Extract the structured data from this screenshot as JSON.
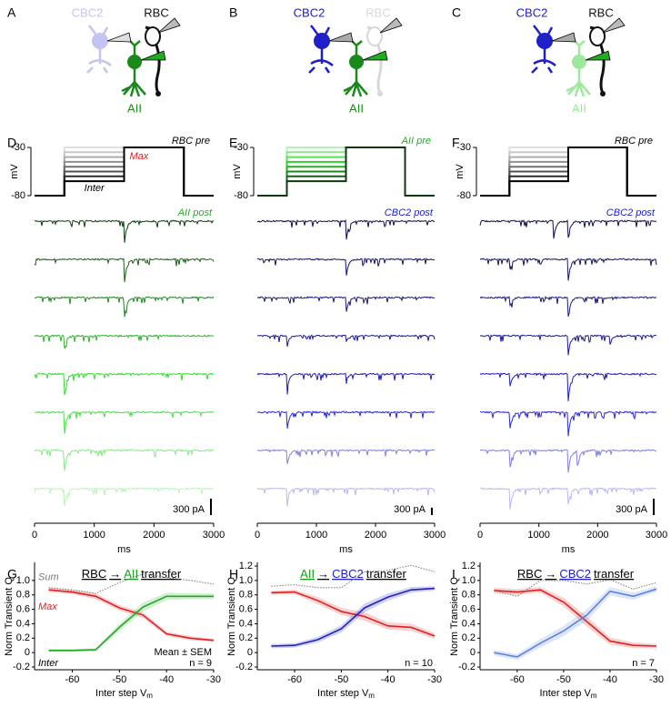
{
  "cartoons": [
    {
      "letter": "A",
      "labels": [
        {
          "text": "CBC2",
          "color": "#c4c4f2"
        },
        {
          "text": "RBC",
          "color": "#111111"
        },
        {
          "text": "AII",
          "color": "#1a8a1a"
        }
      ]
    },
    {
      "letter": "B",
      "labels": [
        {
          "text": "CBC2",
          "color": "#2020c8"
        },
        {
          "text": "RBC",
          "color": "#d8d8d8"
        },
        {
          "text": "AII",
          "color": "#1a8a1a"
        }
      ]
    },
    {
      "letter": "C",
      "labels": [
        {
          "text": "CBC2",
          "color": "#2020c8"
        },
        {
          "text": "RBC",
          "color": "#111111"
        },
        {
          "text": "AII",
          "color": "#9ee89e"
        }
      ]
    }
  ],
  "recordings": [
    {
      "letter": "D",
      "pre_label": "RBC pre",
      "pre_color": "#000000",
      "max_label": "Max",
      "inter_label": "Inter",
      "ylabel": "mV",
      "ylim": [
        -80,
        -30
      ],
      "yticks": [
        -30,
        -80
      ],
      "rest": -80,
      "max": -30,
      "step_times": [
        500,
        1500,
        2500
      ],
      "inter_levels": [
        -65,
        -60,
        -55,
        -50,
        -45,
        -40,
        -35,
        -30
      ],
      "level_colors": [
        "#000000",
        "#2a2a2a",
        "#505050",
        "#707070",
        "#909090",
        "#adadad",
        "#c8c8c8",
        "#e0e0e0"
      ],
      "post_label": "AII post",
      "post_color": "#22aa22",
      "traces": [
        {
          "color": "#0b3d0b",
          "transients": [
            [
              1500,
              450
            ]
          ]
        },
        {
          "color": "#1a5e1a",
          "transients": [
            [
              1500,
              500
            ]
          ]
        },
        {
          "color": "#1e8a1e",
          "transients": [
            [
              1500,
              450
            ]
          ]
        },
        {
          "color": "#2ab82a",
          "transients": [
            [
              500,
              200
            ]
          ]
        },
        {
          "color": "#30dd30",
          "transients": [
            [
              500,
              400
            ]
          ]
        },
        {
          "color": "#48e048",
          "transients": [
            [
              500,
              400
            ]
          ]
        },
        {
          "color": "#8ae88a",
          "transients": [
            [
              500,
              400
            ]
          ]
        },
        {
          "color": "#bdf2bd",
          "transients": [
            [
              500,
              350
            ]
          ]
        }
      ],
      "scale_bar": {
        "value": 300,
        "label": "300 pA"
      },
      "xlim": [
        0,
        3000
      ],
      "xticks": [
        0,
        1000,
        2000,
        3000
      ],
      "xlabel": "ms"
    },
    {
      "letter": "E",
      "pre_label": "AII pre",
      "pre_color": "#22aa22",
      "ylabel": "mV",
      "ylim": [
        -80,
        -30
      ],
      "yticks": [
        -30,
        -80
      ],
      "rest": -80,
      "max": -30,
      "step_times": [
        500,
        1500,
        2500
      ],
      "inter_levels": [
        -65,
        -60,
        -55,
        -50,
        -45,
        -40,
        -35,
        -30
      ],
      "level_colors": [
        "#0c3a0c",
        "#146014",
        "#1a8a1a",
        "#22b022",
        "#30d030",
        "#5ae05a",
        "#8ae88a",
        "#b8f0b8"
      ],
      "post_label": "CBC2 post",
      "post_color": "#2020c8",
      "traces": [
        {
          "color": "#101048",
          "transients": [
            [
              1500,
              900
            ]
          ]
        },
        {
          "color": "#141460",
          "transients": [
            [
              1500,
              800
            ]
          ]
        },
        {
          "color": "#18187a",
          "transients": [
            [
              1500,
              700
            ]
          ]
        },
        {
          "color": "#1a1a9a",
          "transients": [
            [
              500,
              400
            ],
            [
              1500,
              300
            ]
          ]
        },
        {
          "color": "#1c1cc0",
          "transients": [
            [
              500,
              700
            ],
            [
              1500,
              300
            ]
          ]
        },
        {
          "color": "#2a2ad8",
          "transients": [
            [
              500,
              800
            ]
          ]
        },
        {
          "color": "#8080e0",
          "transients": [
            [
              500,
              700
            ]
          ]
        },
        {
          "color": "#b8b8f0",
          "transients": [
            [
              500,
              600
            ]
          ]
        }
      ],
      "scale_bar": {
        "value": 300,
        "label": "300 pA"
      },
      "xlim": [
        0,
        3000
      ],
      "xticks": [
        0,
        1000,
        2000,
        3000
      ],
      "xlabel": "ms"
    },
    {
      "letter": "F",
      "pre_label": "RBC pre",
      "pre_color": "#000000",
      "ylabel": "mV",
      "ylim": [
        -80,
        -30
      ],
      "yticks": [
        -30,
        -80
      ],
      "rest": -80,
      "max": -30,
      "step_times": [
        500,
        1500,
        2500
      ],
      "inter_levels": [
        -65,
        -60,
        -55,
        -50,
        -45,
        -40,
        -35,
        -30
      ],
      "level_colors": [
        "#000000",
        "#2a2a2a",
        "#505050",
        "#707070",
        "#909090",
        "#adadad",
        "#c8c8c8",
        "#e0e0e0"
      ],
      "post_label": "CBC2 post",
      "post_color": "#2020c8",
      "traces": [
        {
          "color": "#101048",
          "transients": [
            [
              1250,
              350
            ],
            [
              1500,
              300
            ]
          ]
        },
        {
          "color": "#141460",
          "transients": [
            [
              500,
              250
            ],
            [
              1500,
              400
            ]
          ]
        },
        {
          "color": "#18187a",
          "transients": [
            [
              500,
              200
            ],
            [
              1500,
              350
            ]
          ]
        },
        {
          "color": "#1a1a9a",
          "transients": [
            [
              1500,
              350
            ],
            [
              2200,
              200
            ]
          ]
        },
        {
          "color": "#1c1cc0",
          "transients": [
            [
              500,
              300
            ],
            [
              1500,
              500
            ]
          ]
        },
        {
          "color": "#2a2ad8",
          "transients": [
            [
              500,
              400
            ],
            [
              1500,
              450
            ]
          ]
        },
        {
          "color": "#8080e0",
          "transients": [
            [
              500,
              400
            ],
            [
              1500,
              400
            ],
            [
              1650,
              300
            ]
          ]
        },
        {
          "color": "#b8b8f0",
          "transients": [
            [
              500,
              500
            ],
            [
              1500,
              300
            ]
          ]
        }
      ],
      "scale_bar": {
        "value": 300,
        "label": "300 pA"
      },
      "xlim": [
        0,
        3000
      ],
      "xticks": [
        0,
        1000,
        2000,
        3000
      ],
      "xlabel": "ms"
    }
  ],
  "chart_data": [
    {
      "type": "line",
      "letter": "G",
      "title_parts": [
        {
          "text": "RBC",
          "color": "#000000"
        },
        {
          "text": "→",
          "color": "#000000"
        },
        {
          "text": "AII",
          "color": "#1a9a1a"
        },
        {
          "text": "transfer",
          "color": "#000000"
        }
      ],
      "ylabel": "Norm Transient Q",
      "xlabel": "Inter step V",
      "xlabel_sub": "m",
      "x": [
        -65,
        -60,
        -55,
        -50,
        -45,
        -40,
        -35,
        -30
      ],
      "xlim": [
        -68,
        -30
      ],
      "xticks": [
        -60,
        -50,
        -40,
        -30
      ],
      "ylim": [
        -0.2,
        1.2
      ],
      "yticks": [
        {
          "value": 1,
          "label": "1.0"
        },
        0.8,
        0.6,
        0.4,
        0.2,
        0,
        -0.2
      ],
      "series": [
        {
          "name": "Sum",
          "color": "#777777",
          "style": "dotted",
          "values": [
            0.9,
            0.87,
            0.82,
            0.97,
            1.09,
            1.04,
            1.0,
            0.95
          ]
        },
        {
          "name": "Max",
          "color": "#e02020",
          "values": [
            0.87,
            0.84,
            0.78,
            0.62,
            0.52,
            0.26,
            0.2,
            0.17
          ],
          "error": [
            0.03,
            0.03,
            0.04,
            0.04,
            0.04,
            0.03,
            0.03,
            0.02
          ]
        },
        {
          "name": "Inter",
          "color": "#22aa22",
          "values": [
            0.03,
            0.03,
            0.04,
            0.35,
            0.63,
            0.78,
            0.78,
            0.78
          ],
          "error": [
            0.02,
            0.02,
            0.02,
            0.05,
            0.06,
            0.05,
            0.04,
            0.04
          ]
        }
      ],
      "annotations": [
        "Mean ± SEM",
        "n = 9"
      ]
    },
    {
      "type": "line",
      "letter": "H",
      "title_parts": [
        {
          "text": "AII",
          "color": "#1a9a1a"
        },
        {
          "text": "→",
          "color": "#000000"
        },
        {
          "text": "CBC2",
          "color": "#2020c8"
        },
        {
          "text": "transfer",
          "color": "#000000"
        }
      ],
      "ylabel": "Norm Transient Q",
      "xlabel": "Inter step V",
      "xlabel_sub": "m",
      "x": [
        -65,
        -60,
        -55,
        -50,
        -45,
        -40,
        -35,
        -30
      ],
      "xlim": [
        -68,
        -30
      ],
      "xticks": [
        -60,
        -50,
        -40,
        -30
      ],
      "ylim": [
        -0.2,
        1.2
      ],
      "yticks": [
        1.2,
        {
          "value": 1,
          "label": "1.0"
        },
        0.8,
        0.6,
        0.4,
        0.2,
        0,
        -0.2
      ],
      "series": [
        {
          "color": "#777777",
          "style": "dotted",
          "values": [
            0.92,
            0.94,
            0.9,
            0.9,
            1.12,
            1.14,
            1.21,
            1.12
          ]
        },
        {
          "color": "#e02020",
          "values": [
            0.83,
            0.84,
            0.72,
            0.57,
            0.5,
            0.37,
            0.35,
            0.23
          ],
          "error": [
            0.03,
            0.03,
            0.05,
            0.05,
            0.06,
            0.05,
            0.05,
            0.04
          ]
        },
        {
          "color": "#2020c8",
          "values": [
            0.09,
            0.1,
            0.18,
            0.33,
            0.62,
            0.77,
            0.87,
            0.89
          ],
          "error": [
            0.03,
            0.03,
            0.04,
            0.05,
            0.06,
            0.05,
            0.04,
            0.03
          ]
        }
      ],
      "annotations": [
        "n = 10"
      ]
    },
    {
      "type": "line",
      "letter": "I",
      "title_parts": [
        {
          "text": "RBC",
          "color": "#000000"
        },
        {
          "text": "→",
          "color": "#000000"
        },
        {
          "text": "CBC2",
          "color": "#2020c8"
        },
        {
          "text": "transfer",
          "color": "#000000"
        }
      ],
      "ylabel": "Norm Transient Q",
      "xlabel": "Inter step V",
      "xlabel_sub": "m",
      "x": [
        -65,
        -60,
        -55,
        -50,
        -45,
        -40,
        -35,
        -30
      ],
      "xlim": [
        -68,
        -30
      ],
      "xticks": [
        -60,
        -50,
        -40,
        -30
      ],
      "ylim": [
        -0.2,
        1.2
      ],
      "yticks": [
        1.2,
        {
          "value": 1,
          "label": "1.0"
        },
        0.8,
        0.6,
        0.4,
        0.2,
        0,
        -0.2
      ],
      "series": [
        {
          "color": "#777777",
          "style": "dotted",
          "values": [
            0.86,
            0.78,
            1.0,
            1.0,
            0.95,
            1.01,
            0.88,
            0.97
          ]
        },
        {
          "color": "#e02020",
          "values": [
            0.86,
            0.84,
            0.87,
            0.7,
            0.43,
            0.16,
            0.1,
            0.09
          ],
          "error": [
            0.04,
            0.04,
            0.04,
            0.06,
            0.07,
            0.05,
            0.04,
            0.03
          ]
        },
        {
          "color": "#5a80e0",
          "values": [
            0.0,
            -0.06,
            0.13,
            0.3,
            0.52,
            0.85,
            0.78,
            0.88
          ],
          "error": [
            0.04,
            0.04,
            0.06,
            0.07,
            0.08,
            0.06,
            0.05,
            0.04
          ]
        }
      ],
      "annotations": [
        "n = 7"
      ]
    }
  ]
}
